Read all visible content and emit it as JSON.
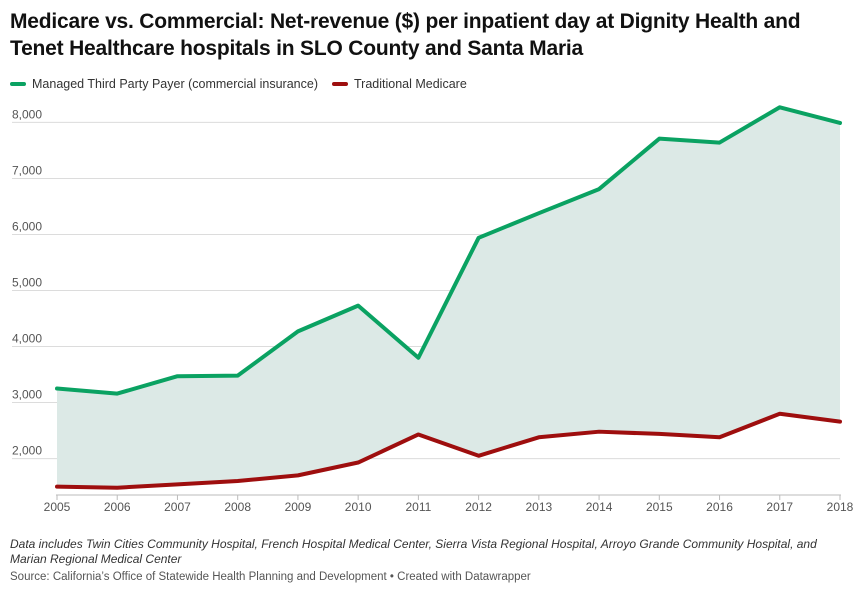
{
  "chart_data": {
    "type": "area",
    "title": "Medicare vs. Commercial: Net-revenue ($) per inpatient day at Dignity Health and Tenet Healthcare hospitals in SLO County and Santa Maria",
    "x": [
      "2005",
      "2006",
      "2007",
      "2008",
      "2009",
      "2010",
      "2011",
      "2012",
      "2013",
      "2014",
      "2015",
      "2016",
      "2017",
      "2018"
    ],
    "series": [
      {
        "name": "Managed Third Party Payer (commercial insurance)",
        "color": "#0aa262",
        "values": [
          3250,
          3160,
          3470,
          3480,
          4270,
          4730,
          3800,
          5940,
          6380,
          6810,
          7710,
          7640,
          8270,
          7990
        ]
      },
      {
        "name": "Traditional Medicare",
        "color": "#9e0e0e",
        "values": [
          1500,
          1480,
          1540,
          1600,
          1700,
          1930,
          2430,
          2050,
          2380,
          2480,
          2440,
          2380,
          2800,
          2660
        ]
      }
    ],
    "yticks": [
      2000,
      3000,
      4000,
      5000,
      6000,
      7000,
      8000
    ],
    "ytick_labels": [
      "2,000",
      "3,000",
      "4,000",
      "5,000",
      "6,000",
      "7,000",
      "8,000"
    ],
    "ylim": [
      1350,
      8400
    ],
    "area_fill": "#dce9e6",
    "grid": true,
    "legend_position": "top-left"
  },
  "notes": "Data includes Twin Cities Community Hospital, French Hospital Medical Center, Sierra Vista Regional Hospital, Arroyo Grande Community Hospital, and Marian Regional Medical Center",
  "source": "Source: California’s Office of Statewide Health Planning and Development • Created with Datawrapper"
}
